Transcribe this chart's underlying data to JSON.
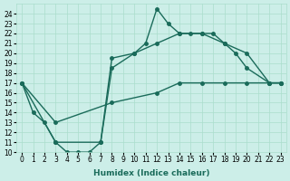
{
  "xlabel": "Humidex (Indice chaleur)",
  "ylabel": "",
  "bg_color": "#cceee8",
  "line_color": "#1a6b5a",
  "grid_color": "#aaddcc",
  "xlim": [
    -0.5,
    23.5
  ],
  "ylim": [
    10,
    25
  ],
  "xticks": [
    0,
    1,
    2,
    3,
    4,
    5,
    6,
    7,
    8,
    9,
    10,
    11,
    12,
    13,
    14,
    15,
    16,
    17,
    18,
    19,
    20,
    21,
    22,
    23
  ],
  "yticks": [
    10,
    11,
    12,
    13,
    14,
    15,
    16,
    17,
    18,
    19,
    20,
    21,
    22,
    23,
    24
  ],
  "series": [
    {
      "x": [
        0,
        1,
        2,
        3,
        4,
        5,
        6,
        7,
        8,
        10,
        11,
        12,
        13,
        14,
        15,
        16,
        17,
        18,
        19,
        20,
        22,
        23
      ],
      "y": [
        17,
        14,
        13,
        11,
        10,
        10,
        10,
        11,
        19.5,
        20,
        21,
        24.5,
        23,
        22,
        22,
        22,
        22,
        21,
        20,
        18.5,
        17,
        17
      ]
    },
    {
      "x": [
        0,
        3,
        7,
        8,
        10,
        12,
        14,
        16,
        18,
        20,
        22,
        23
      ],
      "y": [
        17,
        11,
        11,
        18.5,
        20,
        21,
        22,
        22,
        21,
        20,
        17,
        17
      ]
    },
    {
      "x": [
        0,
        3,
        8,
        12,
        14,
        16,
        18,
        20,
        22,
        23
      ],
      "y": [
        17,
        13,
        15,
        16,
        17,
        17,
        17,
        17,
        17,
        17
      ]
    }
  ]
}
